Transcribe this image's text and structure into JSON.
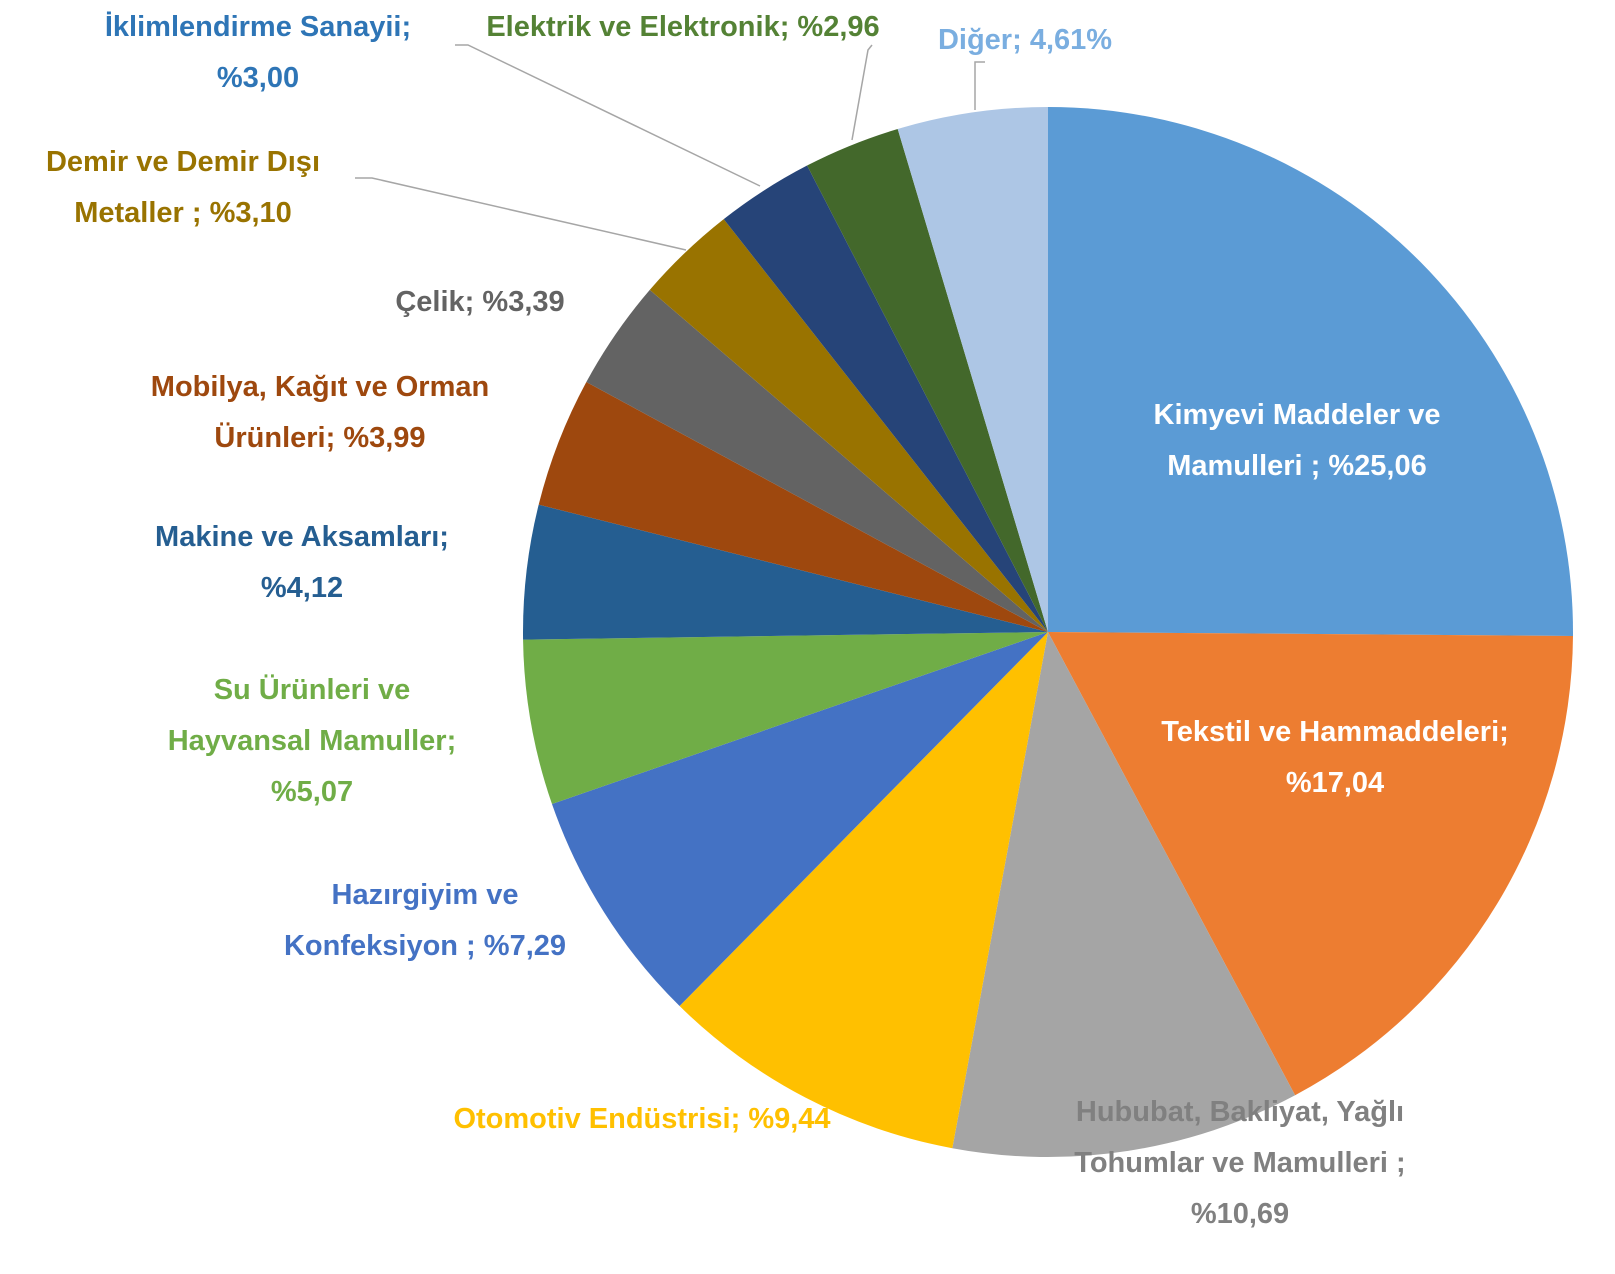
{
  "chart_data": {
    "type": "pie",
    "categories": [
      "Kimyevi Maddeler ve Mamulleri  ;",
      "Tekstil ve Hammaddeleri;",
      "Hububat, Bakliyat, Yağlı Tohumlar ve Mamulleri ;",
      "Otomotiv Endüstrisi;",
      "Hazırgiyim ve Konfeksiyon ;",
      "Su Ürünleri ve Hayvansal Mamuller;",
      "Makine ve Aksamları;",
      "Mobilya, Kağıt ve Orman Ürünleri;",
      "Çelik;",
      "Demir ve Demir Dışı Metaller ;",
      "İklimlendirme Sanayii;",
      "Elektrik ve Elektronik;",
      "Diğer;"
    ],
    "values": [
      25.06,
      17.04,
      10.69,
      9.44,
      7.29,
      5.07,
      4.12,
      3.99,
      3.39,
      3.1,
      3.0,
      2.96,
      4.61
    ],
    "value_labels": [
      "%25,06",
      "%17,04",
      "%10,69",
      "%9,44",
      "%7,29",
      "%5,07",
      "%4,12",
      "%3,99",
      "%3,39",
      "%3,10",
      "%3,00",
      "%2,96",
      "4,61%"
    ],
    "colors": [
      "#5b9bd5",
      "#ed7d31",
      "#a5a5a5",
      "#ffc000",
      "#4472c4",
      "#70ad47",
      "#255e91",
      "#9e480e",
      "#636363",
      "#997300",
      "#264478",
      "#43682b",
      "#adc6e5"
    ],
    "label_colors": [
      "#ffffff",
      "#ffffff",
      "#808080",
      "#ffc000",
      "#4472c4",
      "#70ad47",
      "#255e91",
      "#9e480e",
      "#636363",
      "#997300",
      "#2e75b6",
      "#548235",
      "#7aaee0"
    ]
  }
}
